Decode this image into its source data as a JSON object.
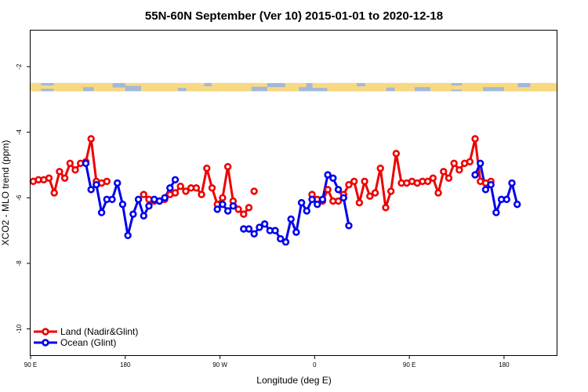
{
  "chart_data": {
    "type": "line",
    "title": "55N-60N September (Ver 10)   2015-01-01 to 2020-12-18",
    "xlabel": "Longitude (deg E)",
    "ylabel": "XCO2 - MLO trend (ppm)",
    "xlim": [
      90,
      590
    ],
    "ylim": [
      -10.8,
      -0.9
    ],
    "x_ticks": [
      {
        "value": 90,
        "label": "90 E"
      },
      {
        "value": 180,
        "label": "180"
      },
      {
        "value": 270,
        "label": "90 W"
      },
      {
        "value": 360,
        "label": "0"
      },
      {
        "value": 450,
        "label": "90 E"
      },
      {
        "value": 540,
        "label": "180"
      }
    ],
    "y_ticks": [
      {
        "value": -2,
        "label": "-2"
      },
      {
        "value": -4,
        "label": "-4"
      },
      {
        "value": -6,
        "label": "-6"
      },
      {
        "value": -8,
        "label": "-8"
      },
      {
        "value": -10,
        "label": "-10"
      }
    ],
    "grid": false,
    "legend_position": "bottom-left",
    "land_mask_strip": {
      "y_range": [
        -2.75,
        -2.5
      ],
      "ocean_color": "#a3b8d8",
      "land_color": "#f8d982"
    },
    "series": [
      {
        "name": "Land (Nadir&Glint)",
        "color": "#ee0000",
        "segments": [
          {
            "x": [
              92.5,
              97.5,
              102.5,
              107.5,
              112.5,
              117.5,
              122.5,
              127.5,
              132.5,
              137.5,
              142.5,
              147.5,
              152.5,
              157.5,
              162.5,
              167.5
            ],
            "y": [
              -5.5,
              -5.45,
              -5.45,
              -5.4,
              -5.85,
              -5.2,
              -5.4,
              -4.95,
              -5.15,
              -4.95,
              -4.9,
              -4.2,
              -5.5,
              -5.55,
              -5.5,
              null
            ]
          },
          {
            "x": [
              197.5,
              202.5,
              207.5,
              212.5,
              217.5,
              222.5,
              227.5,
              232.5,
              237.5,
              242.5,
              247.5,
              252.5,
              257.5,
              262.5,
              267.5,
              272.5,
              277.5,
              282.5,
              287.5,
              292.5,
              297.5
            ],
            "y": [
              -5.9,
              -6.05,
              -6.1,
              -6.1,
              -6.05,
              -5.9,
              -5.85,
              -5.65,
              -5.8,
              -5.7,
              -5.7,
              -5.9,
              -5.1,
              -5.7,
              -6.2,
              -6.0,
              -5.05,
              -6.1,
              -6.35,
              -6.5,
              -6.3
            ]
          },
          {
            "x": [
              302.5
            ],
            "y": [
              -5.8
            ]
          },
          {
            "x": [
              357.5,
              362.5,
              367.5,
              372.5,
              377.5,
              382.5,
              387.5,
              392.5,
              397.5,
              402.5,
              407.5,
              412.5,
              417.5,
              422.5,
              427.5,
              432.5,
              437.5,
              442.5,
              447.5,
              452.5,
              457.5,
              462.5,
              467.5,
              472.5,
              477.5,
              482.5,
              487.5,
              492.5,
              497.5,
              502.5,
              507.5,
              512.5,
              517.5,
              522.5,
              527.5,
              532.5,
              537.5
            ],
            "y": [
              -5.9,
              -6.05,
              -6.1,
              -5.75,
              -6.1,
              -6.1,
              -5.9,
              -5.6,
              -5.5,
              -6.15,
              -5.5,
              -5.95,
              -5.85,
              -5.1,
              -6.3,
              -5.8,
              -4.65,
              -5.55,
              -5.55,
              -5.5,
              -5.55,
              -5.5,
              -5.5,
              -5.4,
              -5.85,
              -5.2,
              -5.4,
              -4.95,
              -5.15,
              -4.95,
              -4.9,
              -4.2,
              -5.5,
              -5.55,
              -5.5,
              null,
              null
            ]
          }
        ]
      },
      {
        "name": "Ocean (Glint)",
        "color": "#0000ee",
        "segments": [
          {
            "x": [
              142.5,
              147.5,
              152.5,
              157.5,
              162.5,
              167.5,
              172.5,
              177.5,
              182.5,
              187.5,
              192.5,
              197.5,
              202.5,
              207.5,
              212.5,
              217.5,
              222.5,
              227.5
            ],
            "y": [
              -4.95,
              -5.75,
              -5.6,
              -6.45,
              -6.05,
              -6.05,
              -5.55,
              -6.2,
              -7.15,
              -6.5,
              -6.05,
              -6.55,
              -6.25,
              -6.05,
              -6.1,
              -6.0,
              -5.7,
              -5.45
            ]
          },
          {
            "x": [
              267.5,
              272.5,
              277.5,
              282.5
            ],
            "y": [
              -6.35,
              -6.2,
              -6.4,
              -6.25
            ]
          },
          {
            "x": [
              292.5,
              297.5,
              302.5,
              307.5,
              312.5,
              317.5,
              322.5,
              327.5,
              332.5,
              337.5,
              342.5,
              347.5,
              352.5,
              357.5,
              362.5
            ],
            "y": [
              -6.95,
              -6.95,
              -7.1,
              -6.9,
              -6.8,
              -7.0,
              -7.0,
              -7.25,
              -7.35,
              -6.65,
              -7.05,
              -6.15,
              -6.4,
              -6.05,
              -6.2
            ]
          },
          {
            "x": [
              367.5,
              372.5,
              377.5,
              382.5,
              387.5,
              392.5
            ],
            "y": [
              -6.05,
              -5.3,
              -5.4,
              -5.75,
              -6.0,
              -6.85
            ]
          },
          {
            "x": [
              512.5,
              517.5,
              522.5,
              527.5,
              532.5,
              537.5,
              542.5,
              547.5,
              552.5,
              557.5,
              562.5,
              567.5,
              572.5
            ],
            "y": [
              -5.3,
              -4.95,
              -5.75,
              -5.6,
              -6.45,
              -6.05,
              -6.05,
              -5.55,
              -6.2,
              null,
              null,
              null,
              null
            ]
          }
        ]
      }
    ]
  }
}
